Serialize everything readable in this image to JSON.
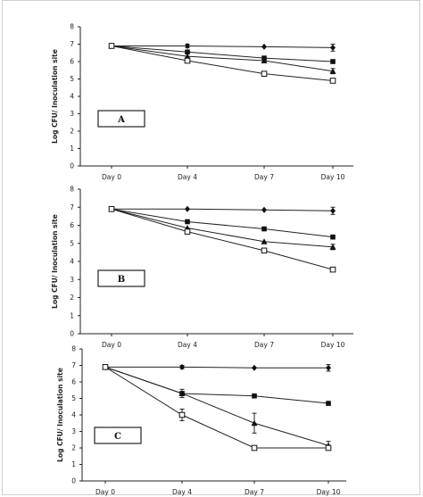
{
  "chart_data": [
    {
      "type": "line",
      "panel_label": "A",
      "ylabel": "Log CFU/ Inoculation site",
      "categories": [
        "Day 0",
        "Day 4",
        "Day 7",
        "Day 10"
      ],
      "yticks": [
        0,
        1,
        2,
        3,
        4,
        5,
        6,
        7,
        8
      ],
      "ylim": [
        0,
        8
      ],
      "series": [
        {
          "marker": "diamond",
          "values": [
            6.9,
            6.9,
            6.85,
            6.8
          ],
          "errors": [
            0,
            0.1,
            0,
            0.2
          ]
        },
        {
          "marker": "square",
          "values": [
            6.9,
            6.55,
            6.2,
            6.0
          ],
          "errors": [
            0,
            0,
            0,
            0
          ]
        },
        {
          "marker": "triangle",
          "values": [
            6.9,
            6.3,
            6.05,
            5.45
          ],
          "errors": [
            0,
            0,
            0,
            0.15
          ]
        },
        {
          "marker": "open-square",
          "values": [
            6.9,
            6.05,
            5.3,
            4.9
          ],
          "errors": [
            0,
            0,
            0,
            0
          ]
        }
      ]
    },
    {
      "type": "line",
      "panel_label": "B",
      "ylabel": "Log CFU/ Inoculation site",
      "categories": [
        "Day 0",
        "Day 4",
        "Day 7",
        "Day 10"
      ],
      "yticks": [
        0,
        1,
        2,
        3,
        4,
        5,
        6,
        7,
        8
      ],
      "ylim": [
        0,
        8
      ],
      "series": [
        {
          "marker": "diamond",
          "values": [
            6.9,
            6.9,
            6.85,
            6.8
          ],
          "errors": [
            0,
            0,
            0,
            0.2
          ]
        },
        {
          "marker": "square",
          "values": [
            6.9,
            6.2,
            5.8,
            5.35
          ],
          "errors": [
            0,
            0,
            0,
            0
          ]
        },
        {
          "marker": "triangle",
          "values": [
            6.9,
            5.85,
            5.1,
            4.8
          ],
          "errors": [
            0,
            0,
            0,
            0.15
          ]
        },
        {
          "marker": "open-square",
          "values": [
            6.9,
            5.65,
            4.6,
            3.55
          ],
          "errors": [
            0,
            0,
            0,
            0
          ]
        }
      ]
    },
    {
      "type": "line",
      "panel_label": "C",
      "ylabel": "Log CFU/ Inoculation site",
      "categories": [
        "Day 0",
        "Day 4",
        "Day 7",
        "Day 10"
      ],
      "yticks": [
        0,
        1,
        2,
        3,
        4,
        5,
        6,
        7,
        8
      ],
      "ylim": [
        0,
        8
      ],
      "series": [
        {
          "marker": "diamond",
          "values": [
            6.9,
            6.9,
            6.85,
            6.85
          ],
          "errors": [
            0,
            0.1,
            0,
            0.2
          ]
        },
        {
          "marker": "square",
          "values": [
            6.9,
            5.3,
            5.15,
            4.7
          ],
          "errors": [
            0,
            0,
            0,
            0
          ]
        },
        {
          "marker": "triangle",
          "values": [
            6.9,
            5.3,
            3.5,
            2.15
          ],
          "errors": [
            0,
            0.25,
            0.6,
            0.25
          ]
        },
        {
          "marker": "open-square",
          "values": [
            6.9,
            4.0,
            2.0,
            2.0
          ],
          "errors": [
            0,
            0.35,
            0,
            0
          ]
        }
      ]
    }
  ]
}
